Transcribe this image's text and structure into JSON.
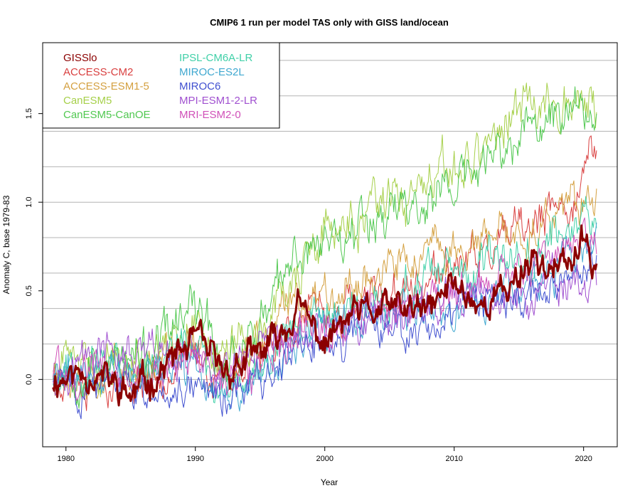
{
  "chart_data": {
    "type": "line",
    "title": "CMIP6 1 run per model TAS only with GISS land/ocean",
    "xlabel": "Year",
    "ylabel": "Anomaly C, base 1979-83",
    "xlim": [
      1978.2,
      2022.6
    ],
    "ylim": [
      -0.38,
      1.9
    ],
    "x_ticks": [
      1980,
      1990,
      2000,
      2010,
      2020
    ],
    "y_ticks": [
      0.0,
      0.5,
      1.0,
      1.5
    ],
    "gridlines_y": [
      0.0,
      0.2,
      0.4,
      0.6,
      0.8,
      1.0,
      1.2,
      1.4,
      1.6,
      1.8
    ],
    "grid": "horizontal",
    "legend_position": "top-left",
    "x_start": 1979.0,
    "x_end": 2021.0,
    "series": [
      {
        "name": "GISSlo",
        "color": "#8b0000",
        "line_width": 3,
        "anchors": [
          [
            1979,
            0.0
          ],
          [
            1982,
            0.05
          ],
          [
            1985,
            -0.1
          ],
          [
            1988,
            0.1
          ],
          [
            1990,
            0.22
          ],
          [
            1992,
            0.05
          ],
          [
            1994,
            0.1
          ],
          [
            1996,
            0.2
          ],
          [
            1998,
            0.4
          ],
          [
            2000,
            0.2
          ],
          [
            2002,
            0.35
          ],
          [
            2005,
            0.4
          ],
          [
            2008,
            0.38
          ],
          [
            2010,
            0.55
          ],
          [
            2012,
            0.42
          ],
          [
            2014,
            0.5
          ],
          [
            2016,
            0.7
          ],
          [
            2018,
            0.6
          ],
          [
            2020,
            0.75
          ],
          [
            2021,
            0.65
          ]
        ],
        "noise": 0.09,
        "seed": 11
      },
      {
        "name": "ACCESS-CM2",
        "color": "#d94040",
        "line_width": 1,
        "anchors": [
          [
            1979,
            0.05
          ],
          [
            1983,
            0.0
          ],
          [
            1986,
            0.0
          ],
          [
            1990,
            0.15
          ],
          [
            1992,
            0.0
          ],
          [
            1995,
            0.15
          ],
          [
            1998,
            0.35
          ],
          [
            2000,
            0.35
          ],
          [
            2004,
            0.45
          ],
          [
            2008,
            0.55
          ],
          [
            2012,
            0.7
          ],
          [
            2016,
            0.85
          ],
          [
            2019,
            1.0
          ],
          [
            2021,
            1.3
          ]
        ],
        "noise": 0.11,
        "seed": 23
      },
      {
        "name": "ACCESS-ESM1-5",
        "color": "#d4a040",
        "line_width": 1,
        "anchors": [
          [
            1979,
            0.05
          ],
          [
            1983,
            0.05
          ],
          [
            1986,
            0.05
          ],
          [
            1990,
            0.2
          ],
          [
            1992,
            0.05
          ],
          [
            1995,
            0.2
          ],
          [
            1998,
            0.45
          ],
          [
            2000,
            0.5
          ],
          [
            2004,
            0.6
          ],
          [
            2008,
            0.7
          ],
          [
            2012,
            0.75
          ],
          [
            2016,
            0.85
          ],
          [
            2019,
            0.95
          ],
          [
            2021,
            1.0
          ]
        ],
        "noise": 0.11,
        "seed": 37
      },
      {
        "name": "CanESM5",
        "color": "#a6d04a",
        "line_width": 1,
        "anchors": [
          [
            1979,
            0.05
          ],
          [
            1983,
            0.1
          ],
          [
            1986,
            0.1
          ],
          [
            1990,
            0.35
          ],
          [
            1992,
            0.1
          ],
          [
            1995,
            0.3
          ],
          [
            1998,
            0.6
          ],
          [
            2000,
            0.8
          ],
          [
            2004,
            0.95
          ],
          [
            2008,
            1.05
          ],
          [
            2012,
            1.3
          ],
          [
            2015,
            1.5
          ],
          [
            2018,
            1.6
          ],
          [
            2021,
            1.55
          ]
        ],
        "noise": 0.13,
        "seed": 41
      },
      {
        "name": "CanESM5-CanOE",
        "color": "#50c850",
        "line_width": 1,
        "anchors": [
          [
            1979,
            0.05
          ],
          [
            1983,
            0.1
          ],
          [
            1986,
            0.1
          ],
          [
            1990,
            0.4
          ],
          [
            1992,
            0.1
          ],
          [
            1995,
            0.3
          ],
          [
            1998,
            0.7
          ],
          [
            2000,
            0.8
          ],
          [
            2004,
            0.95
          ],
          [
            2008,
            1.0
          ],
          [
            2012,
            1.2
          ],
          [
            2016,
            1.4
          ],
          [
            2019,
            1.55
          ],
          [
            2021,
            1.5
          ]
        ],
        "noise": 0.13,
        "seed": 53
      },
      {
        "name": "IPSL-CM6A-LR",
        "color": "#40d0a8",
        "line_width": 1,
        "anchors": [
          [
            1979,
            0.05
          ],
          [
            1983,
            0.1
          ],
          [
            1986,
            0.05
          ],
          [
            1990,
            0.2
          ],
          [
            1992,
            -0.1
          ],
          [
            1995,
            0.1
          ],
          [
            1998,
            0.35
          ],
          [
            2000,
            0.35
          ],
          [
            2004,
            0.45
          ],
          [
            2008,
            0.55
          ],
          [
            2012,
            0.6
          ],
          [
            2016,
            0.75
          ],
          [
            2019,
            0.85
          ],
          [
            2021,
            0.95
          ]
        ],
        "noise": 0.11,
        "seed": 67
      },
      {
        "name": "MIROC-ES2L",
        "color": "#40a8d0",
        "line_width": 1,
        "anchors": [
          [
            1979,
            0.0
          ],
          [
            1983,
            0.05
          ],
          [
            1986,
            0.0
          ],
          [
            1990,
            0.1
          ],
          [
            1992,
            -0.15
          ],
          [
            1995,
            0.0
          ],
          [
            1998,
            0.2
          ],
          [
            2000,
            0.25
          ],
          [
            2004,
            0.35
          ],
          [
            2008,
            0.35
          ],
          [
            2012,
            0.45
          ],
          [
            2016,
            0.55
          ],
          [
            2019,
            0.65
          ],
          [
            2021,
            0.75
          ]
        ],
        "noise": 0.11,
        "seed": 71
      },
      {
        "name": "MIROC6",
        "color": "#4050d0",
        "line_width": 1,
        "anchors": [
          [
            1979,
            0.0
          ],
          [
            1983,
            -0.05
          ],
          [
            1986,
            -0.1
          ],
          [
            1990,
            0.0
          ],
          [
            1992,
            -0.1
          ],
          [
            1995,
            0.0
          ],
          [
            1998,
            0.15
          ],
          [
            2000,
            0.2
          ],
          [
            2004,
            0.3
          ],
          [
            2008,
            0.3
          ],
          [
            2012,
            0.4
          ],
          [
            2016,
            0.45
          ],
          [
            2019,
            0.6
          ],
          [
            2021,
            0.7
          ]
        ],
        "noise": 0.1,
        "seed": 83
      },
      {
        "name": "MPI-ESM1-2-LR",
        "color": "#a050d0",
        "line_width": 1,
        "anchors": [
          [
            1979,
            0.05
          ],
          [
            1983,
            0.15
          ],
          [
            1986,
            0.1
          ],
          [
            1990,
            0.15
          ],
          [
            1992,
            0.0
          ],
          [
            1995,
            0.1
          ],
          [
            1998,
            0.25
          ],
          [
            2000,
            0.25
          ],
          [
            2004,
            0.35
          ],
          [
            2008,
            0.4
          ],
          [
            2012,
            0.45
          ],
          [
            2016,
            0.45
          ],
          [
            2019,
            0.55
          ],
          [
            2021,
            0.5
          ]
        ],
        "noise": 0.11,
        "seed": 97
      },
      {
        "name": "MRI-ESM2-0",
        "color": "#d050b8",
        "line_width": 1,
        "anchors": [
          [
            1979,
            0.05
          ],
          [
            1983,
            0.05
          ],
          [
            1986,
            0.0
          ],
          [
            1990,
            0.15
          ],
          [
            1992,
            0.0
          ],
          [
            1995,
            0.1
          ],
          [
            1998,
            0.3
          ],
          [
            2000,
            0.3
          ],
          [
            2004,
            0.4
          ],
          [
            2008,
            0.45
          ],
          [
            2012,
            0.55
          ],
          [
            2016,
            0.65
          ],
          [
            2019,
            0.75
          ],
          [
            2021,
            0.8
          ]
        ],
        "noise": 0.11,
        "seed": 101
      }
    ]
  }
}
